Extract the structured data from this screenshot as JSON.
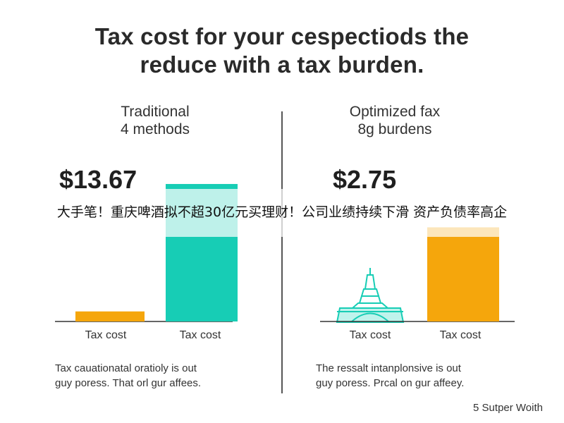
{
  "title": {
    "line1": "Tax cost for your cespectiods the",
    "line2": "reduce with a tax burden."
  },
  "left_panel": {
    "heading_line1": "Traditional",
    "heading_line2": "4 methods",
    "big_value": "$13.67",
    "caption_line1": "Tax cauationatal oratioly is out",
    "caption_line2": "guy poress. That orl gur affees."
  },
  "right_panel": {
    "heading_line1": "Optimized fax",
    "heading_line2": "8g burdens",
    "big_value": "$2.75",
    "caption_line1": "The ressalt intanplonsive is out",
    "caption_line2": "guy poress. Prcal on gur affeey."
  },
  "footer": "5 Sutper Woith",
  "banner": "大手笔！重庆啤酒拟不超30亿元买理财！公司业绩持续下滑 资产负债率高企",
  "colors": {
    "teal": "#17CDB5",
    "amber": "#F5A60C",
    "text": "#222222"
  },
  "chart_data": [
    {
      "type": "bar",
      "categories": [
        "Tax cost",
        "Tax cost"
      ],
      "values": [
        1.0,
        13.67
      ],
      "ylim": [
        0,
        15
      ],
      "colors": [
        "#F5A60C",
        "#17CDB5"
      ],
      "grid": false
    },
    {
      "type": "bar",
      "categories": [
        "Tax cost",
        "Tax cost"
      ],
      "values": [
        null,
        2.75
      ],
      "ylim": [
        0,
        3.5
      ],
      "colors": [
        "#17CDB5",
        "#F5A60C"
      ],
      "grid": false,
      "annotations": [
        "eiffel-tower-icon"
      ]
    }
  ]
}
